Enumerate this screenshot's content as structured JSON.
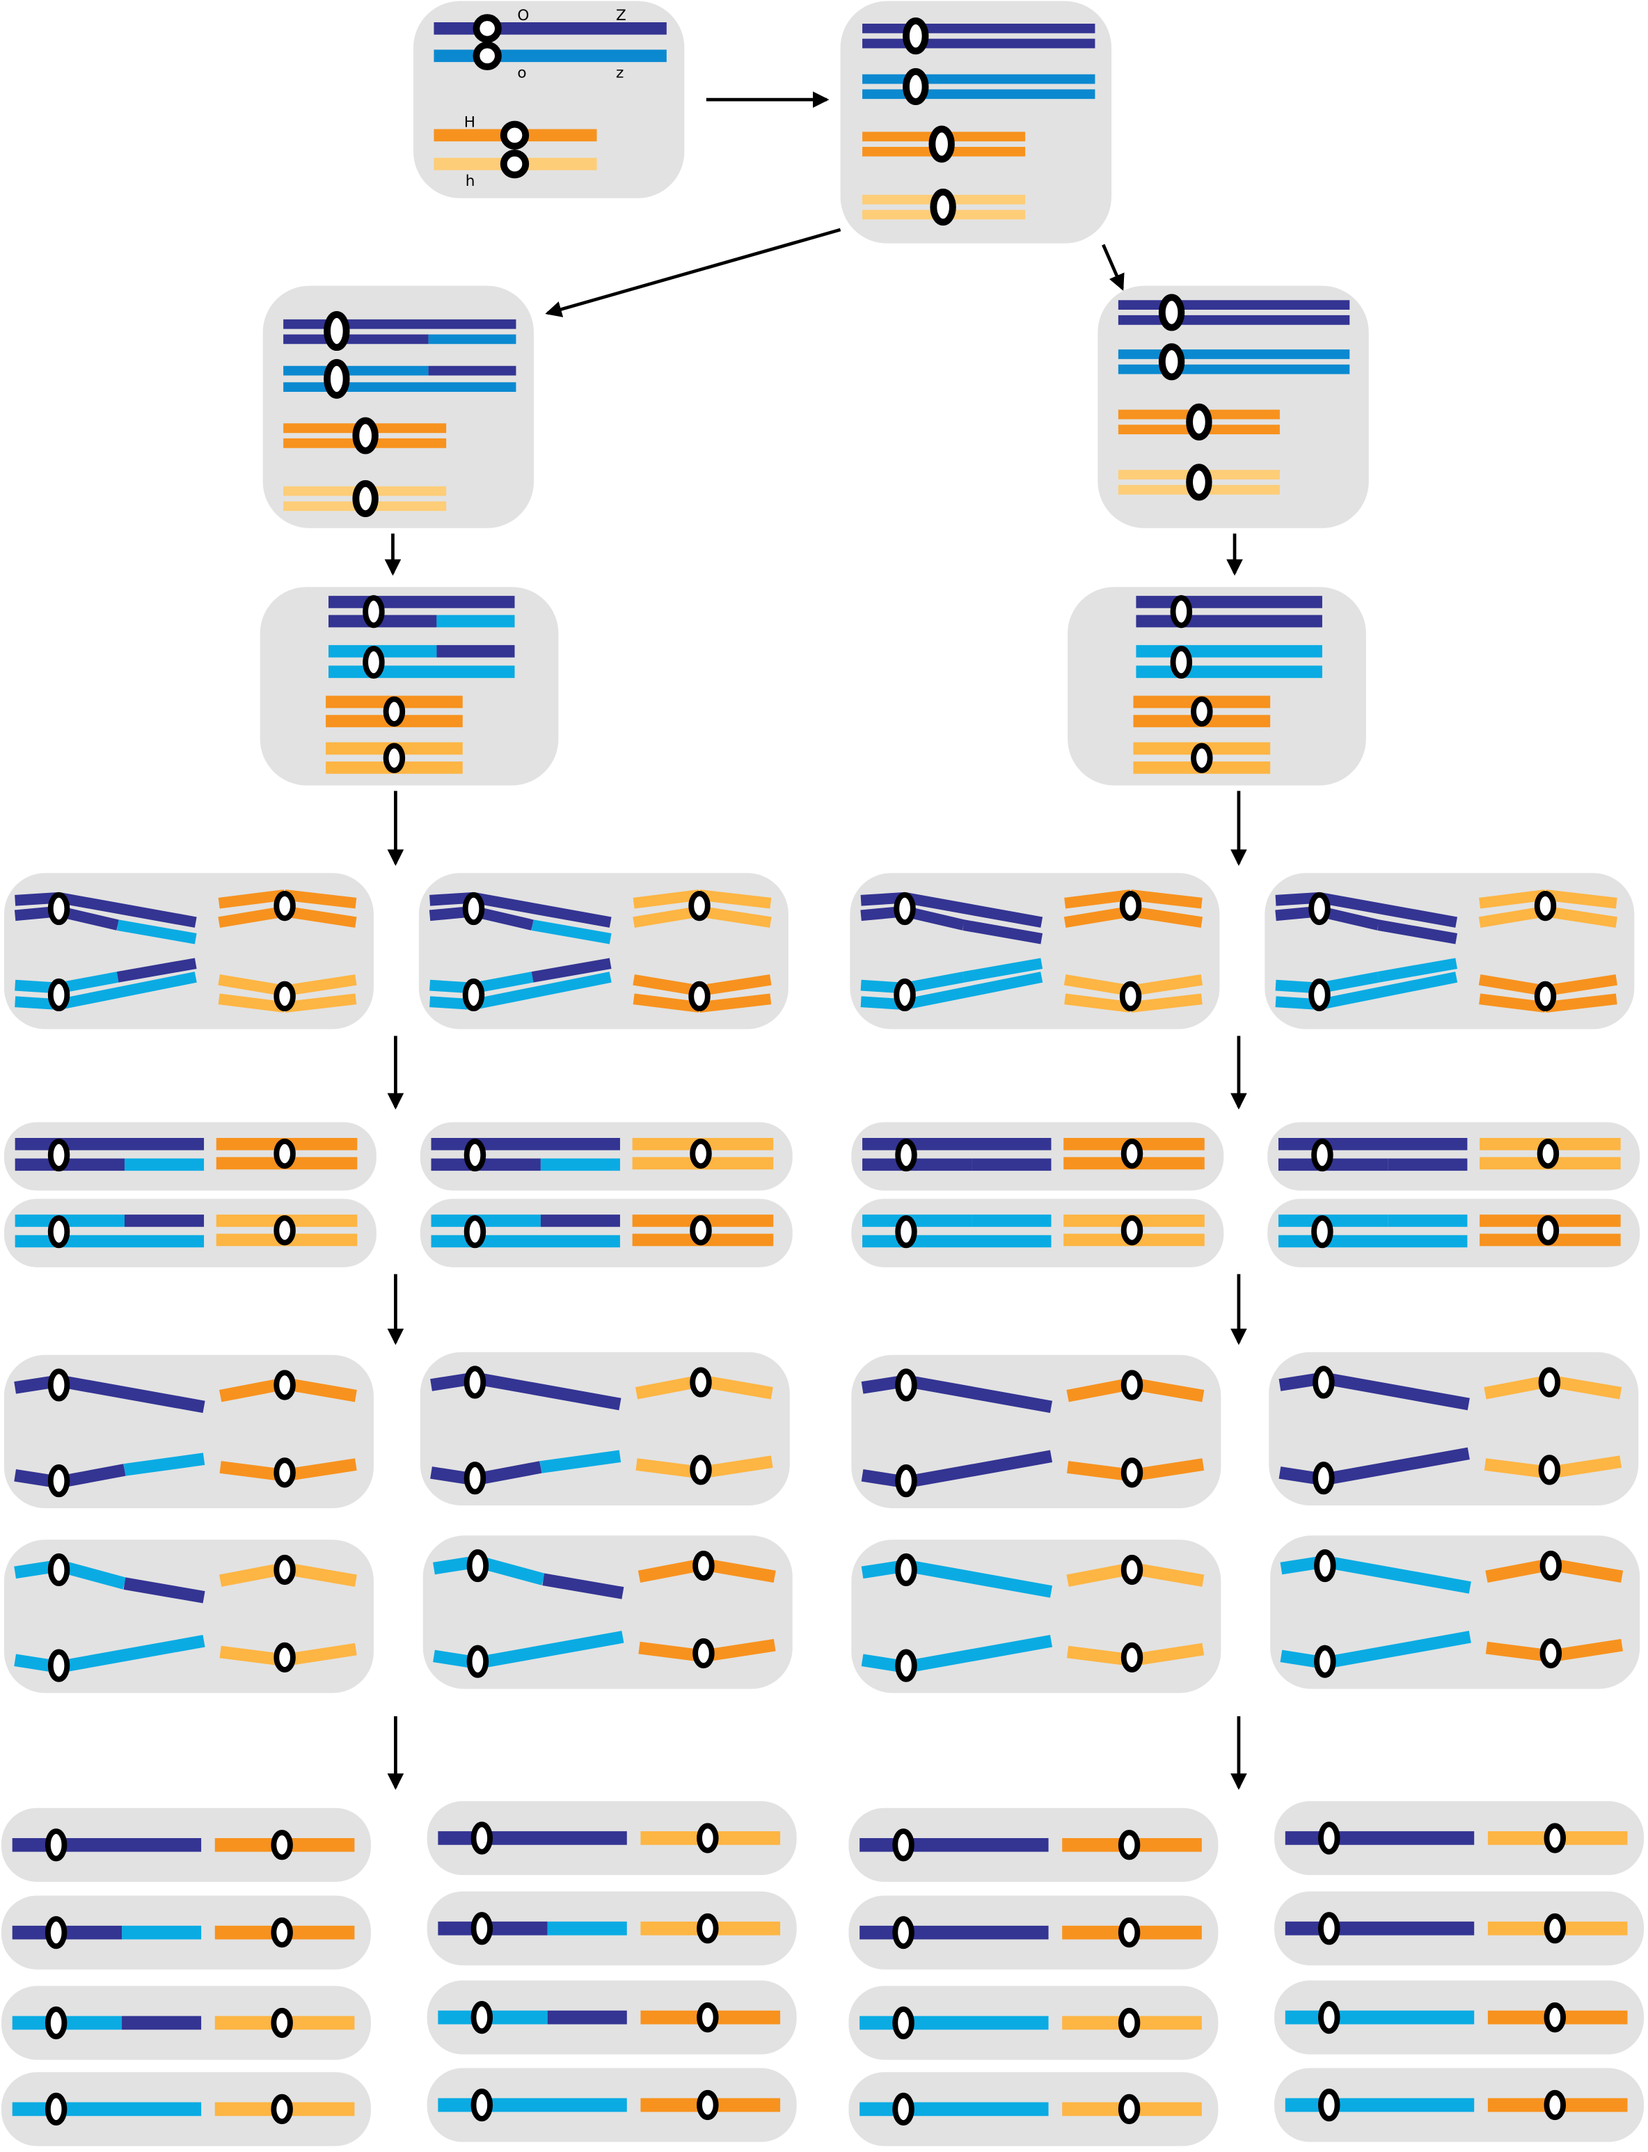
{
  "colors": {
    "panel": "#e2e2e2",
    "dark_blue": "#343493",
    "blue": "#0b89d0",
    "light_blue": "#0aabe3",
    "orange": "#f7921e",
    "light_orange": "#fdb543",
    "pale_orange": "#fdcd78",
    "centromere": "#000000",
    "arrow": "#000000"
  },
  "labels": {
    "O": "O",
    "Z": "Z",
    "o": "o",
    "z": "z",
    "H": "H",
    "h": "h"
  },
  "icons": {
    "centromere": "centromere-ring",
    "arrow": "arrow-down"
  }
}
